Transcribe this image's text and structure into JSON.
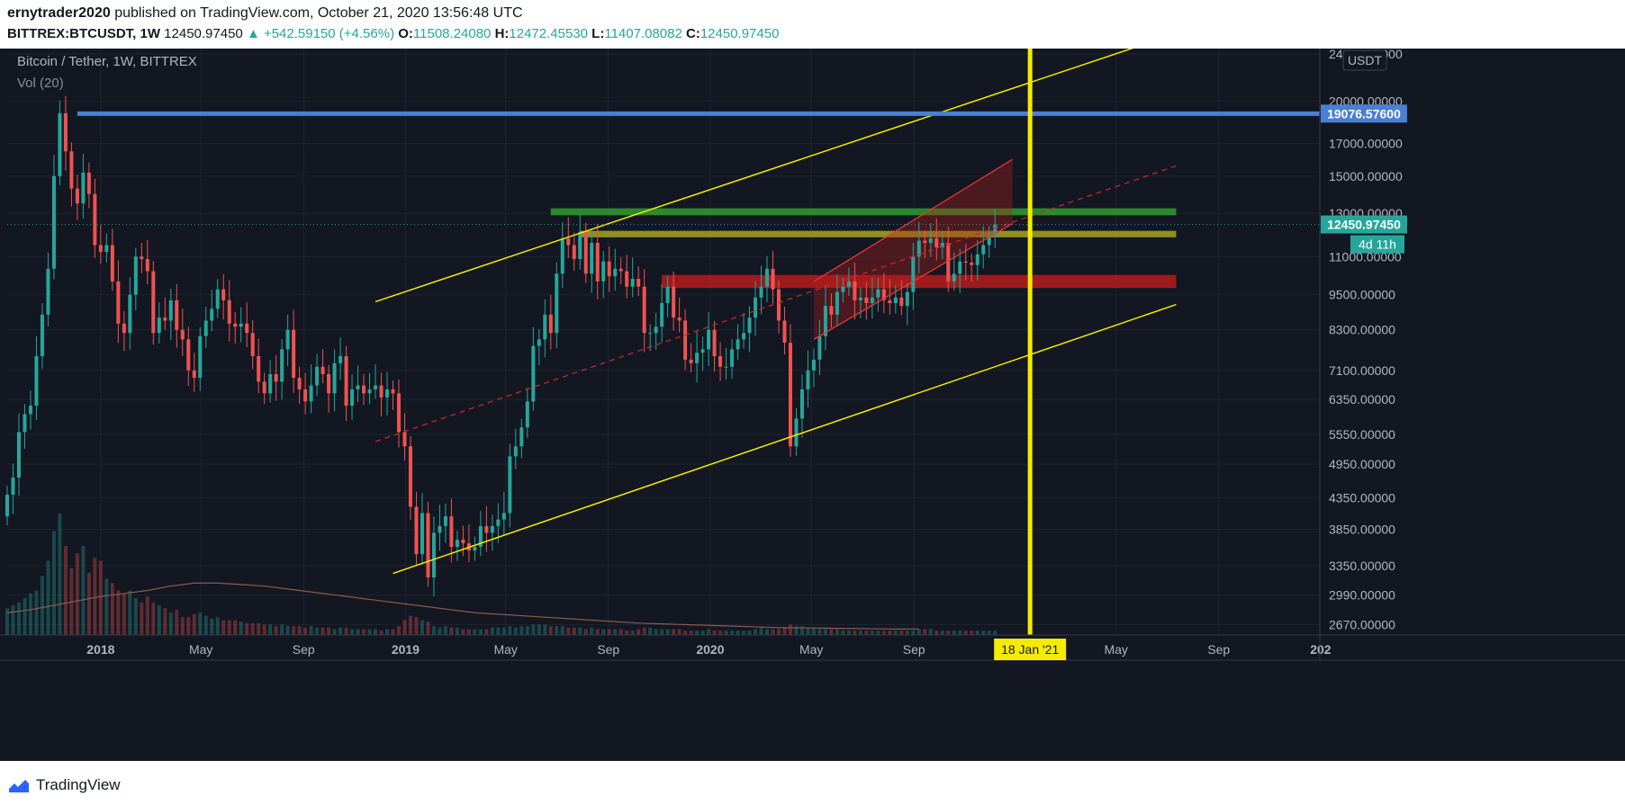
{
  "header": {
    "author": "ernytrader2020",
    "published_text": "published on TradingView.com, October 21, 2020 13:56:48 UTC",
    "symbol": "BITTREX:BTCUSDT, 1W",
    "last": "12450.97450",
    "change": "▲ +542.59150 (+4.56%)",
    "o_label": "O:",
    "o_val": "11508.24080",
    "h_label": "H:",
    "h_val": "12472.45530",
    "l_label": "L:",
    "l_val": "11407.08082",
    "c_label": "C:",
    "c_val": "12450.97450"
  },
  "footer": {
    "brand": "TradingView"
  },
  "colors": {
    "background": "#131722",
    "bull": "#26a69a",
    "bear": "#ef5350",
    "channel_yellow": "#f5eb00",
    "resistance_blue": "#4a7fd4",
    "zone_green": "#2e9e2e",
    "zone_yellow": "#a7a61d",
    "zone_red": "#b71c1c"
  },
  "chart_data": {
    "type": "candlestick",
    "title": "Bitcoin / Tether, 1W, BITTREX",
    "indicator": "Vol (20)",
    "currency_badge": "USDT",
    "y_scale": "log",
    "ylim": [
      2600,
      24000
    ],
    "y_ticks": [
      "24000.00000",
      "20000.00000",
      "17000.00000",
      "15000.00000",
      "13000.00000",
      "11000.00000",
      "9500.00000",
      "8300.00000",
      "7100.00000",
      "6350.00000",
      "5550.00000",
      "4950.00000",
      "4350.00000",
      "3850.00000",
      "3350.00000",
      "2990.00000",
      "2670.00000"
    ],
    "y_tick_values": [
      24000,
      20000,
      17000,
      15000,
      13000,
      11000,
      9500,
      8300,
      7100,
      6350,
      5550,
      4950,
      4350,
      3850,
      3350,
      2990,
      2670
    ],
    "x_range": [
      "2017-09-11",
      "2021-12-31"
    ],
    "x_ticks": [
      {
        "label": "2018",
        "date": "2018-01-01",
        "major": true
      },
      {
        "label": "May",
        "date": "2018-05-01"
      },
      {
        "label": "Sep",
        "date": "2018-09-01"
      },
      {
        "label": "2019",
        "date": "2019-01-01",
        "major": true
      },
      {
        "label": "May",
        "date": "2019-05-01"
      },
      {
        "label": "Sep",
        "date": "2019-09-01"
      },
      {
        "label": "2020",
        "date": "2020-01-01",
        "major": true
      },
      {
        "label": "May",
        "date": "2020-05-01"
      },
      {
        "label": "Sep",
        "date": "2020-09-01"
      },
      {
        "label": "May",
        "date": "2021-05-01"
      },
      {
        "label": "Sep",
        "date": "2021-09-01"
      },
      {
        "label": "202",
        "date": "2022-01-01",
        "major": true
      }
    ],
    "close_series_start": "2017-09-11",
    "close_series_interval": "1W",
    "closes": [
      4400,
      4700,
      5600,
      6000,
      6200,
      7500,
      8800,
      10500,
      15000,
      19100,
      16500,
      14300,
      13500,
      15200,
      14000,
      11500,
      11200,
      11500,
      10000,
      8500,
      8200,
      9500,
      11000,
      10900,
      10400,
      8200,
      8700,
      8600,
      9300,
      8300,
      8000,
      7100,
      6900,
      8100,
      8600,
      9000,
      9700,
      9300,
      8500,
      8400,
      8500,
      8200,
      7500,
      6800,
      6500,
      7000,
      6800,
      7700,
      8300,
      6900,
      6600,
      6300,
      6700,
      7200,
      7000,
      6500,
      7300,
      7500,
      6200,
      6600,
      6700,
      6500,
      6600,
      6700,
      6400,
      6600,
      6500,
      5600,
      5300,
      4200,
      3500,
      4100,
      3200,
      3800,
      3900,
      4050,
      3600,
      3700,
      3650,
      3550,
      3600,
      3900,
      3800,
      3900,
      4000,
      4100,
      5100,
      5300,
      5700,
      6300,
      7800,
      8000,
      8800,
      8200,
      10300,
      11800,
      11500,
      10900,
      12100,
      10300,
      11600,
      10000,
      10800,
      10200,
      10500,
      10400,
      9800,
      10100,
      9800,
      8200,
      8200,
      8400,
      9200,
      9800,
      8700,
      8600,
      7400,
      7300,
      7600,
      7700,
      8300,
      7500,
      7200,
      7200,
      7700,
      8000,
      8200,
      8700,
      9400,
      9800,
      10500,
      9700,
      8600,
      7900,
      5300,
      5900,
      6600,
      7100,
      7400,
      8100,
      9100,
      8800,
      9600,
      9800,
      10000,
      9300,
      9400,
      9200,
      9400,
      9700,
      9300,
      9200,
      9400,
      9100,
      9600,
      11000,
      11700,
      11600,
      11800,
      11400,
      11600,
      10000,
      10300,
      10800,
      10750,
      10650,
      11100,
      11500,
      11900,
      12450
    ],
    "volumes_relative": [
      0.18,
      0.2,
      0.22,
      0.25,
      0.28,
      0.3,
      0.4,
      0.5,
      0.7,
      0.82,
      0.6,
      0.45,
      0.55,
      0.6,
      0.42,
      0.52,
      0.5,
      0.38,
      0.35,
      0.3,
      0.28,
      0.3,
      0.25,
      0.22,
      0.26,
      0.22,
      0.2,
      0.18,
      0.15,
      0.17,
      0.12,
      0.12,
      0.14,
      0.15,
      0.13,
      0.11,
      0.12,
      0.1,
      0.1,
      0.1,
      0.09,
      0.08,
      0.08,
      0.08,
      0.07,
      0.07,
      0.06,
      0.07,
      0.06,
      0.06,
      0.06,
      0.05,
      0.06,
      0.05,
      0.05,
      0.05,
      0.04,
      0.05,
      0.05,
      0.04,
      0.04,
      0.04,
      0.04,
      0.04,
      0.03,
      0.04,
      0.04,
      0.06,
      0.1,
      0.13,
      0.12,
      0.1,
      0.09,
      0.06,
      0.05,
      0.06,
      0.05,
      0.05,
      0.04,
      0.04,
      0.04,
      0.04,
      0.04,
      0.05,
      0.05,
      0.05,
      0.06,
      0.05,
      0.06,
      0.06,
      0.07,
      0.07,
      0.07,
      0.06,
      0.06,
      0.06,
      0.05,
      0.05,
      0.05,
      0.04,
      0.05,
      0.04,
      0.04,
      0.04,
      0.04,
      0.04,
      0.03,
      0.03,
      0.04,
      0.05,
      0.05,
      0.04,
      0.04,
      0.04,
      0.04,
      0.04,
      0.03,
      0.03,
      0.03,
      0.03,
      0.04,
      0.03,
      0.03,
      0.03,
      0.03,
      0.03,
      0.03,
      0.03,
      0.04,
      0.05,
      0.04,
      0.04,
      0.04,
      0.05,
      0.07,
      0.06,
      0.06,
      0.05,
      0.05,
      0.04,
      0.04,
      0.04,
      0.04,
      0.03,
      0.03,
      0.03,
      0.03,
      0.03,
      0.03,
      0.03,
      0.03,
      0.03,
      0.03,
      0.03,
      0.03,
      0.03,
      0.04,
      0.04,
      0.04,
      0.03,
      0.03,
      0.03,
      0.03,
      0.03,
      0.03,
      0.03,
      0.03,
      0.03,
      0.03,
      0.03
    ],
    "vol_ma_relative": [
      0.15,
      0.17,
      0.2,
      0.23,
      0.26,
      0.28,
      0.3,
      0.33,
      0.35,
      0.35,
      0.34,
      0.33,
      0.31,
      0.29,
      0.27,
      0.25,
      0.23,
      0.21,
      0.19,
      0.17,
      0.15,
      0.14,
      0.13,
      0.12,
      0.11,
      0.1,
      0.09,
      0.08,
      0.075,
      0.07,
      0.065,
      0.06,
      0.055,
      0.05,
      0.048,
      0.046,
      0.044,
      0.042,
      0.04,
      0.04
    ],
    "annotations": {
      "resistance_line": {
        "price": 19076.576,
        "label": "19076.57600"
      },
      "last_price_label": "12450.97450",
      "countdown_label": "4d 11h",
      "vertical_marker": {
        "date": "2021-01-18",
        "label": "18 Jan '21"
      },
      "zones": [
        {
          "name": "green-zone",
          "from_date": "2019-06-24",
          "to_date": "2021-07-12",
          "low": 12900,
          "high": 13250
        },
        {
          "name": "yellow-zone",
          "from_date": "2019-07-29",
          "to_date": "2021-07-12",
          "low": 11850,
          "high": 12150
        },
        {
          "name": "red-zone",
          "from_date": "2019-11-04",
          "to_date": "2021-07-12",
          "low": 9750,
          "high": 10250
        }
      ],
      "yellow_channel": {
        "upper": [
          {
            "date": "2018-11-26",
            "price": 9250
          },
          {
            "date": "2021-06-07",
            "price": 25000
          }
        ],
        "lower": [
          {
            "date": "2018-12-17",
            "price": 3250
          },
          {
            "date": "2021-07-12",
            "price": 9150
          }
        ]
      },
      "red_channel": {
        "upper": [
          {
            "date": "2020-05-04",
            "price": 10000
          },
          {
            "date": "2020-12-28",
            "price": 16000
          }
        ],
        "lower": [
          {
            "date": "2020-05-04",
            "price": 8000
          },
          {
            "date": "2020-12-28",
            "price": 12500
          }
        ]
      },
      "dashed_midline": [
        {
          "date": "2018-11-26",
          "price": 5400
        },
        {
          "date": "2021-07-12",
          "price": 15600
        }
      ]
    }
  }
}
